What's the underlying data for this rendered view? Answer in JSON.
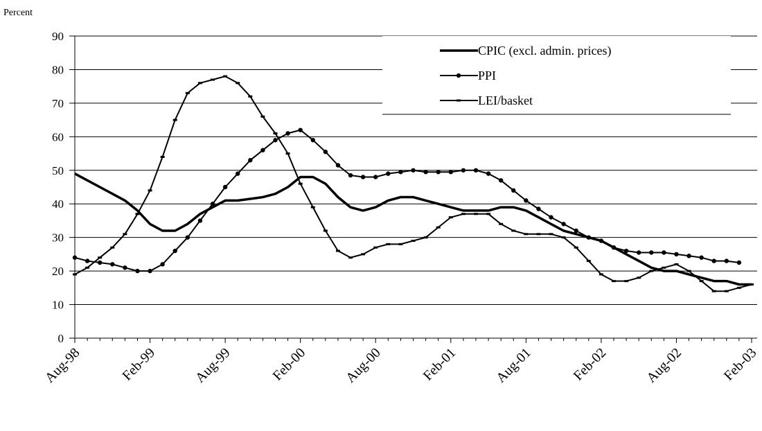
{
  "chart_data": {
    "type": "line",
    "y_label": "Percent",
    "categories": [
      "Aug-98",
      null,
      null,
      null,
      null,
      null,
      "Feb-99",
      null,
      null,
      null,
      null,
      null,
      "Aug-99",
      null,
      null,
      null,
      null,
      null,
      "Feb-00",
      null,
      null,
      null,
      null,
      null,
      "Aug-00",
      null,
      null,
      null,
      null,
      null,
      "Feb-01",
      null,
      null,
      null,
      null,
      null,
      "Aug-01",
      null,
      null,
      null,
      null,
      null,
      "Feb-02",
      null,
      null,
      null,
      null,
      null,
      "Aug-02",
      null,
      null,
      null,
      null,
      null,
      "Feb-03"
    ],
    "series": [
      {
        "name": "CPIC (excl. admin. prices)",
        "color": "#000000",
        "marker": "none",
        "values": [
          49,
          47,
          45,
          43,
          41,
          38,
          34,
          32,
          32,
          34,
          37,
          39,
          41,
          41,
          41.5,
          42,
          43,
          45,
          48,
          48,
          46,
          42,
          39,
          38,
          39,
          41,
          42,
          42,
          41,
          40,
          39,
          38,
          38,
          38,
          39,
          39,
          38,
          36,
          34,
          32,
          31,
          30,
          29,
          27,
          25,
          23,
          21,
          20,
          20,
          19,
          18,
          17,
          17,
          16,
          16
        ]
      },
      {
        "name": "PPI",
        "color": "#000000",
        "marker": "circle",
        "values": [
          24,
          23,
          22.5,
          22,
          21,
          20,
          20,
          22,
          26,
          30,
          35,
          40,
          45,
          49,
          53,
          56,
          59,
          61,
          62,
          59,
          55.5,
          51.5,
          48.5,
          48,
          48,
          49,
          49.5,
          50,
          49.5,
          49.5,
          49.5,
          50,
          50,
          49,
          47,
          44,
          41,
          38.5,
          36,
          34,
          32,
          30,
          29,
          27,
          26,
          25.5,
          25.5,
          25.5,
          25,
          24.5,
          24,
          23,
          23,
          22.5,
          null
        ]
      },
      {
        "name": "LEI/basket",
        "color": "#000000",
        "marker": "dash",
        "values": [
          19,
          21,
          24,
          27,
          31,
          37,
          44,
          54,
          65,
          73,
          76,
          77,
          78,
          76,
          72,
          66,
          61,
          55,
          46,
          39,
          32,
          26,
          24,
          25,
          27,
          28,
          28,
          29,
          30,
          33,
          36,
          37,
          37,
          37,
          34,
          32,
          31,
          31,
          31,
          30,
          27,
          23,
          19,
          17,
          17,
          18,
          20,
          21,
          22,
          20,
          17,
          14,
          14,
          15,
          16
        ]
      }
    ],
    "ylim": [
      0,
      90
    ],
    "yticks": [
      0,
      10,
      20,
      30,
      40,
      50,
      60,
      70,
      80,
      90
    ],
    "grid": true,
    "legend": "top-right"
  }
}
